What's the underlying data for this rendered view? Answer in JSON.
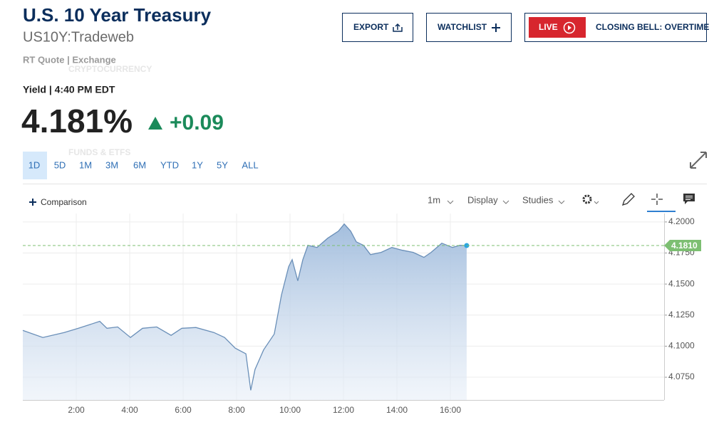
{
  "header": {
    "title": "U.S. 10 Year Treasury",
    "symbol": "US10Y:Tradeweb",
    "quote_source": "RT Quote | Exchange",
    "ghost_menu": [
      "CRYPTOCURRENCY",
      "FUNDS & ETFS"
    ]
  },
  "buttons": {
    "export": "EXPORT",
    "watchlist": "WATCHLIST",
    "live": "LIVE",
    "live_show": "CLOSING BELL: OVERTIME"
  },
  "quote": {
    "label": "Yield | 4:40 PM EDT",
    "price": "4.181%",
    "change": "+0.09"
  },
  "ranges": [
    "1D",
    "5D",
    "1M",
    "3M",
    "6M",
    "YTD",
    "1Y",
    "5Y",
    "ALL"
  ],
  "selected_range": 0,
  "toolbar": {
    "comparison": "Comparison",
    "interval": "1m",
    "display": "Display",
    "studies": "Studies"
  },
  "chart_data": {
    "type": "area",
    "x": [
      0,
      0.75,
      1.55,
      2.08,
      2.88,
      3.15,
      3.55,
      4.03,
      4.48,
      5.01,
      5.55,
      5.95,
      6.48,
      7.15,
      7.55,
      7.95,
      8.35,
      8.53,
      8.69,
      9.01,
      9.41,
      9.68,
      9.95,
      10.08,
      10.29,
      10.48,
      10.67,
      11.01,
      11.41,
      11.81,
      12.03,
      12.27,
      12.48,
      12.75,
      13.01,
      13.41,
      13.81,
      14.21,
      14.61,
      15.01,
      15.28,
      15.68,
      16.08,
      16.35,
      16.61
    ],
    "series": [
      {
        "color": "#6a8fb8",
        "values": [
          4.1127,
          4.107,
          4.111,
          4.1144,
          4.12,
          4.1144,
          4.1155,
          4.107,
          4.1144,
          4.1155,
          4.1087,
          4.1144,
          4.115,
          4.111,
          4.107,
          4.0984,
          4.0938,
          4.0645,
          4.0813,
          4.097,
          4.1098,
          4.1412,
          4.164,
          4.1697,
          4.1526,
          4.1697,
          4.1812,
          4.1795,
          4.1869,
          4.1926,
          4.1983,
          4.1926,
          4.184,
          4.1812,
          4.1737,
          4.1755,
          4.1795,
          4.1772,
          4.1755,
          4.1715,
          4.1755,
          4.1829,
          4.1795,
          4.1812,
          4.181
        ]
      }
    ],
    "xlim": [
      0,
      24
    ],
    "xticks": [
      {
        "value": 2,
        "label": "2:00"
      },
      {
        "value": 4,
        "label": "4:00"
      },
      {
        "value": 6,
        "label": "6:00"
      },
      {
        "value": 8,
        "label": "8:00"
      },
      {
        "value": 10,
        "label": "10:00"
      },
      {
        "value": 12,
        "label": "12:00"
      },
      {
        "value": 14,
        "label": "14:00"
      },
      {
        "value": 16,
        "label": "16:00"
      }
    ],
    "ylim": [
      4.0567,
      4.2068
    ],
    "yticks": [
      {
        "value": 4.075,
        "label": "4.0750"
      },
      {
        "value": 4.1,
        "label": "4.1000"
      },
      {
        "value": 4.125,
        "label": "4.1250"
      },
      {
        "value": 4.15,
        "label": "4.1500"
      },
      {
        "value": 4.175,
        "label": "4.1750"
      },
      {
        "value": 4.2,
        "label": "4.2000"
      }
    ],
    "last_value": {
      "value": 4.181,
      "label": "4.1810"
    },
    "last_color": "#7dbf72",
    "grid": true
  }
}
